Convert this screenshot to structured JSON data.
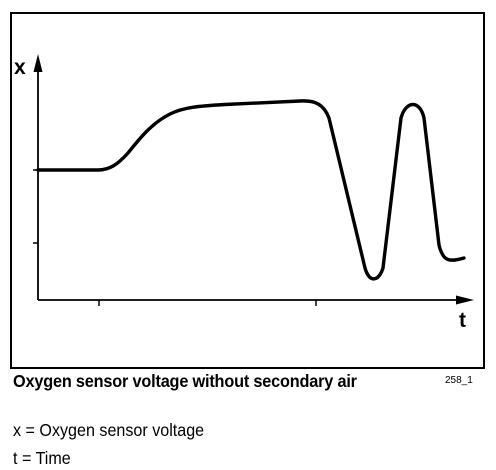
{
  "figure": {
    "y_axis_label": "x",
    "x_axis_label": "t",
    "caption": "Oxygen sensor voltage without secondary air",
    "figure_id": "258_1"
  },
  "legend": [
    {
      "symbol": "x",
      "equals": "=",
      "meaning": "Oxygen sensor voltage"
    },
    {
      "symbol": "t",
      "equals": "=",
      "meaning": "Time"
    }
  ],
  "colors": {
    "line": "#000000",
    "background": "#ffffff"
  }
}
